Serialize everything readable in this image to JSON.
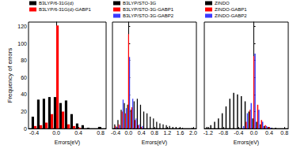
{
  "chart_data": [
    {
      "type": "bar",
      "ylabel": "Frequency of errors",
      "xlabel": "Errors(eV)",
      "x": [
        -0.4,
        -0.3,
        -0.2,
        -0.1,
        0.0,
        0.1,
        0.2,
        0.3,
        0.4,
        0.5,
        0.6,
        0.7,
        0.8
      ],
      "series": [
        {
          "name": "B3LYP/6-31G(d)",
          "color": "#000000",
          "values": [
            14,
            34,
            35,
            37,
            37,
            30,
            33,
            17,
            6,
            4,
            1,
            0,
            2
          ]
        },
        {
          "name": "B3LYP/6-31G(d)-GABP1",
          "color": "#ff0000",
          "values": [
            3,
            4,
            7,
            17,
            121,
            20,
            5,
            3,
            1,
            0,
            0,
            0,
            0
          ]
        }
      ],
      "xlim": [
        -0.5,
        0.9
      ],
      "xticks": [
        -0.4,
        {
          "value": 0,
          "label": "0.0"
        },
        0.4,
        0.8
      ],
      "ylim": [
        0,
        125
      ],
      "yticks": [
        0,
        20,
        40,
        60,
        80,
        100,
        120
      ],
      "legend": "upper left",
      "grid": false
    },
    {
      "type": "bar",
      "xlabel": "Errors(eV)",
      "x": [
        -0.4,
        -0.3,
        -0.2,
        -0.1,
        0.0,
        0.1,
        0.2,
        0.3,
        0.4,
        0.5,
        0.6,
        0.7,
        0.8,
        0.9,
        1.0,
        1.1,
        1.2,
        1.3,
        1.4,
        1.5,
        1.6,
        1.7,
        1.8,
        1.9,
        2.0
      ],
      "series": [
        {
          "name": "B3LYP/STO-3G",
          "color": "#000000",
          "values": [
            5,
            10,
            22,
            30,
            28,
            22,
            32,
            35,
            28,
            20,
            18,
            14,
            12,
            8,
            6,
            5,
            4,
            3,
            2,
            2,
            1,
            1,
            0,
            0,
            1
          ]
        },
        {
          "name": "B3LYP/STO-3G-GABP1",
          "color": "#ff0000",
          "values": [
            3,
            5,
            20,
            18,
            111,
            25,
            10,
            4,
            2,
            0,
            0,
            0,
            0,
            0,
            0,
            0,
            0,
            0,
            0,
            0,
            0,
            0,
            0,
            0,
            0
          ]
        },
        {
          "name": "B3LYP/STO-3G-GABP2",
          "color": "#3a3aff",
          "values": [
            2,
            4,
            34,
            24,
            84,
            35,
            12,
            5,
            3,
            0,
            0,
            0,
            0,
            0,
            0,
            0,
            0,
            0,
            0,
            0,
            0,
            0,
            0,
            0,
            0
          ]
        }
      ],
      "xlim": [
        -0.5,
        2.1
      ],
      "xticks": [
        -0.4,
        {
          "value": 0,
          "label": "0.0"
        },
        0.4,
        0.8,
        1.2,
        1.6,
        {
          "value": 2,
          "label": "2.0"
        }
      ],
      "ylim": [
        0,
        125
      ],
      "yticks": [
        0,
        20,
        40,
        60,
        80,
        100,
        120
      ],
      "tick_labels": "x",
      "legend": "upper left",
      "grid": false
    },
    {
      "type": "bar",
      "xlabel": "Errors(eV)",
      "x": [
        -1.2,
        -1.1,
        -1.0,
        -0.9,
        -0.8,
        -0.7,
        -0.6,
        -0.5,
        -0.4,
        -0.3,
        -0.2,
        -0.1,
        0.0,
        0.1,
        0.2,
        0.3,
        0.4,
        0.5,
        0.6,
        0.7,
        0.8
      ],
      "series": [
        {
          "name": "ZINDO",
          "color": "#000000",
          "values": [
            2,
            4,
            8,
            12,
            18,
            26,
            35,
            42,
            40,
            38,
            32,
            20,
            12,
            8,
            5,
            3,
            2,
            1,
            1,
            0,
            0
          ]
        },
        {
          "name": "ZINDO-GABP1",
          "color": "#ff0000",
          "values": [
            0,
            0,
            0,
            0,
            0,
            0,
            0,
            0,
            0,
            0,
            8,
            22,
            85,
            28,
            10,
            4,
            2,
            0,
            0,
            0,
            0
          ]
        },
        {
          "name": "ZINDO-GABP2",
          "color": "#3a3aff",
          "values": [
            0,
            0,
            0,
            0,
            0,
            0,
            0,
            0,
            0,
            3,
            18,
            30,
            88,
            22,
            8,
            3,
            1,
            0,
            0,
            0,
            0
          ]
        }
      ],
      "xlim": [
        -1.3,
        0.9
      ],
      "xticks": [
        -1.2,
        -0.8,
        -0.4,
        {
          "value": 0,
          "label": "0.0"
        },
        0.4,
        0.8
      ],
      "ylim": [
        0,
        125
      ],
      "yticks": [
        0,
        20,
        40,
        60,
        80,
        100,
        120
      ],
      "tick_labels": "x",
      "legend": "upper left",
      "grid": false
    }
  ]
}
